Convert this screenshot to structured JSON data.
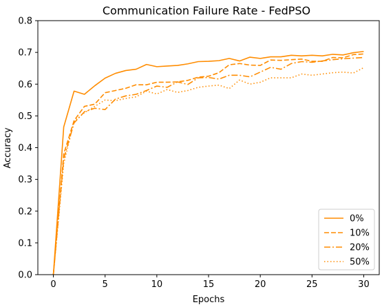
{
  "chart_data": {
    "type": "line",
    "title": "Communication Failure Rate - FedPSO",
    "xlabel": "Epochs",
    "ylabel": "Accuracy",
    "xlim": [
      -1.5,
      31.5
    ],
    "ylim": [
      0.0,
      0.8
    ],
    "xticks": [
      0,
      5,
      10,
      15,
      20,
      25,
      30
    ],
    "yticks": [
      0.0,
      0.1,
      0.2,
      0.3,
      0.4,
      0.5,
      0.6,
      0.7,
      0.8
    ],
    "xtick_labels": [
      "0",
      "5",
      "10",
      "15",
      "20",
      "25",
      "30"
    ],
    "ytick_labels": [
      "0.0",
      "0.1",
      "0.2",
      "0.3",
      "0.4",
      "0.5",
      "0.6",
      "0.7",
      "0.8"
    ],
    "grid": false,
    "legend_position": "bottom-right",
    "color": "#ff8c00",
    "x": [
      0,
      1,
      2,
      3,
      4,
      5,
      6,
      7,
      8,
      9,
      10,
      11,
      12,
      13,
      14,
      15,
      16,
      17,
      18,
      19,
      20,
      21,
      22,
      23,
      24,
      25,
      26,
      27,
      28,
      29,
      30
    ],
    "series": [
      {
        "name": "0%",
        "dash": "solid",
        "values": [
          0.0,
          0.465,
          0.578,
          0.568,
          0.595,
          0.619,
          0.634,
          0.643,
          0.647,
          0.662,
          0.655,
          0.657,
          0.659,
          0.664,
          0.671,
          0.672,
          0.674,
          0.681,
          0.673,
          0.685,
          0.681,
          0.686,
          0.686,
          0.691,
          0.689,
          0.691,
          0.689,
          0.694,
          0.692,
          0.699,
          0.703
        ]
      },
      {
        "name": "10%",
        "dash": "dashed",
        "values": [
          0.0,
          0.38,
          0.485,
          0.53,
          0.537,
          0.573,
          0.58,
          0.587,
          0.598,
          0.598,
          0.606,
          0.606,
          0.607,
          0.612,
          0.622,
          0.625,
          0.636,
          0.661,
          0.665,
          0.66,
          0.659,
          0.676,
          0.675,
          0.677,
          0.679,
          0.672,
          0.672,
          0.684,
          0.683,
          0.693,
          0.695
        ]
      },
      {
        "name": "20%",
        "dash": "dashdot",
        "values": [
          0.0,
          0.365,
          0.478,
          0.513,
          0.524,
          0.52,
          0.553,
          0.563,
          0.568,
          0.58,
          0.594,
          0.59,
          0.607,
          0.599,
          0.62,
          0.621,
          0.616,
          0.628,
          0.628,
          0.623,
          0.638,
          0.653,
          0.647,
          0.665,
          0.671,
          0.669,
          0.673,
          0.677,
          0.68,
          0.682,
          0.684
        ]
      },
      {
        "name": "50%",
        "dash": "dotted",
        "values": [
          0.0,
          0.35,
          0.483,
          0.51,
          0.53,
          0.55,
          0.548,
          0.555,
          0.56,
          0.578,
          0.569,
          0.583,
          0.574,
          0.58,
          0.59,
          0.594,
          0.597,
          0.586,
          0.613,
          0.6,
          0.606,
          0.62,
          0.62,
          0.62,
          0.632,
          0.628,
          0.632,
          0.636,
          0.638,
          0.635,
          0.652
        ]
      }
    ]
  }
}
